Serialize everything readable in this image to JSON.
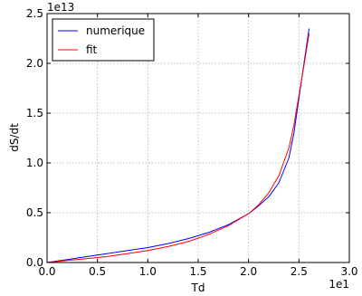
{
  "chart_data": {
    "type": "line",
    "xlabel": "Td",
    "ylabel": "dS/dt",
    "x_offset_label": "1e1",
    "y_offset_label": "1e13",
    "xlim": [
      0.0,
      3.0
    ],
    "ylim": [
      0.0,
      2.5
    ],
    "x_ticks": [
      "0.0",
      "0.5",
      "1.0",
      "1.5",
      "2.0",
      "2.5",
      "3.0"
    ],
    "y_ticks": [
      "0.0",
      "0.5",
      "1.0",
      "1.5",
      "2.0",
      "2.5"
    ],
    "grid": true,
    "legend_position": "top-left",
    "series": [
      {
        "name": "numerique",
        "color": "#0000ff",
        "x": [
          0.0,
          0.2,
          0.4,
          0.6,
          0.8,
          1.0,
          1.2,
          1.4,
          1.6,
          1.8,
          2.0,
          2.1,
          2.2,
          2.3,
          2.4,
          2.45,
          2.5,
          2.55,
          2.6
        ],
        "y": [
          0.0,
          0.03,
          0.06,
          0.09,
          0.12,
          0.15,
          0.19,
          0.24,
          0.3,
          0.38,
          0.49,
          0.57,
          0.66,
          0.8,
          1.05,
          1.3,
          1.65,
          2.0,
          2.35
        ]
      },
      {
        "name": "fit",
        "color": "#ff0000",
        "x": [
          0.0,
          0.2,
          0.4,
          0.6,
          0.8,
          1.0,
          1.2,
          1.4,
          1.6,
          1.8,
          2.0,
          2.1,
          2.2,
          2.3,
          2.4,
          2.45,
          2.5,
          2.55,
          2.6
        ],
        "y": [
          0.0,
          0.02,
          0.04,
          0.06,
          0.09,
          0.12,
          0.16,
          0.21,
          0.28,
          0.37,
          0.49,
          0.58,
          0.7,
          0.87,
          1.15,
          1.38,
          1.68,
          1.98,
          2.3
        ]
      }
    ]
  }
}
